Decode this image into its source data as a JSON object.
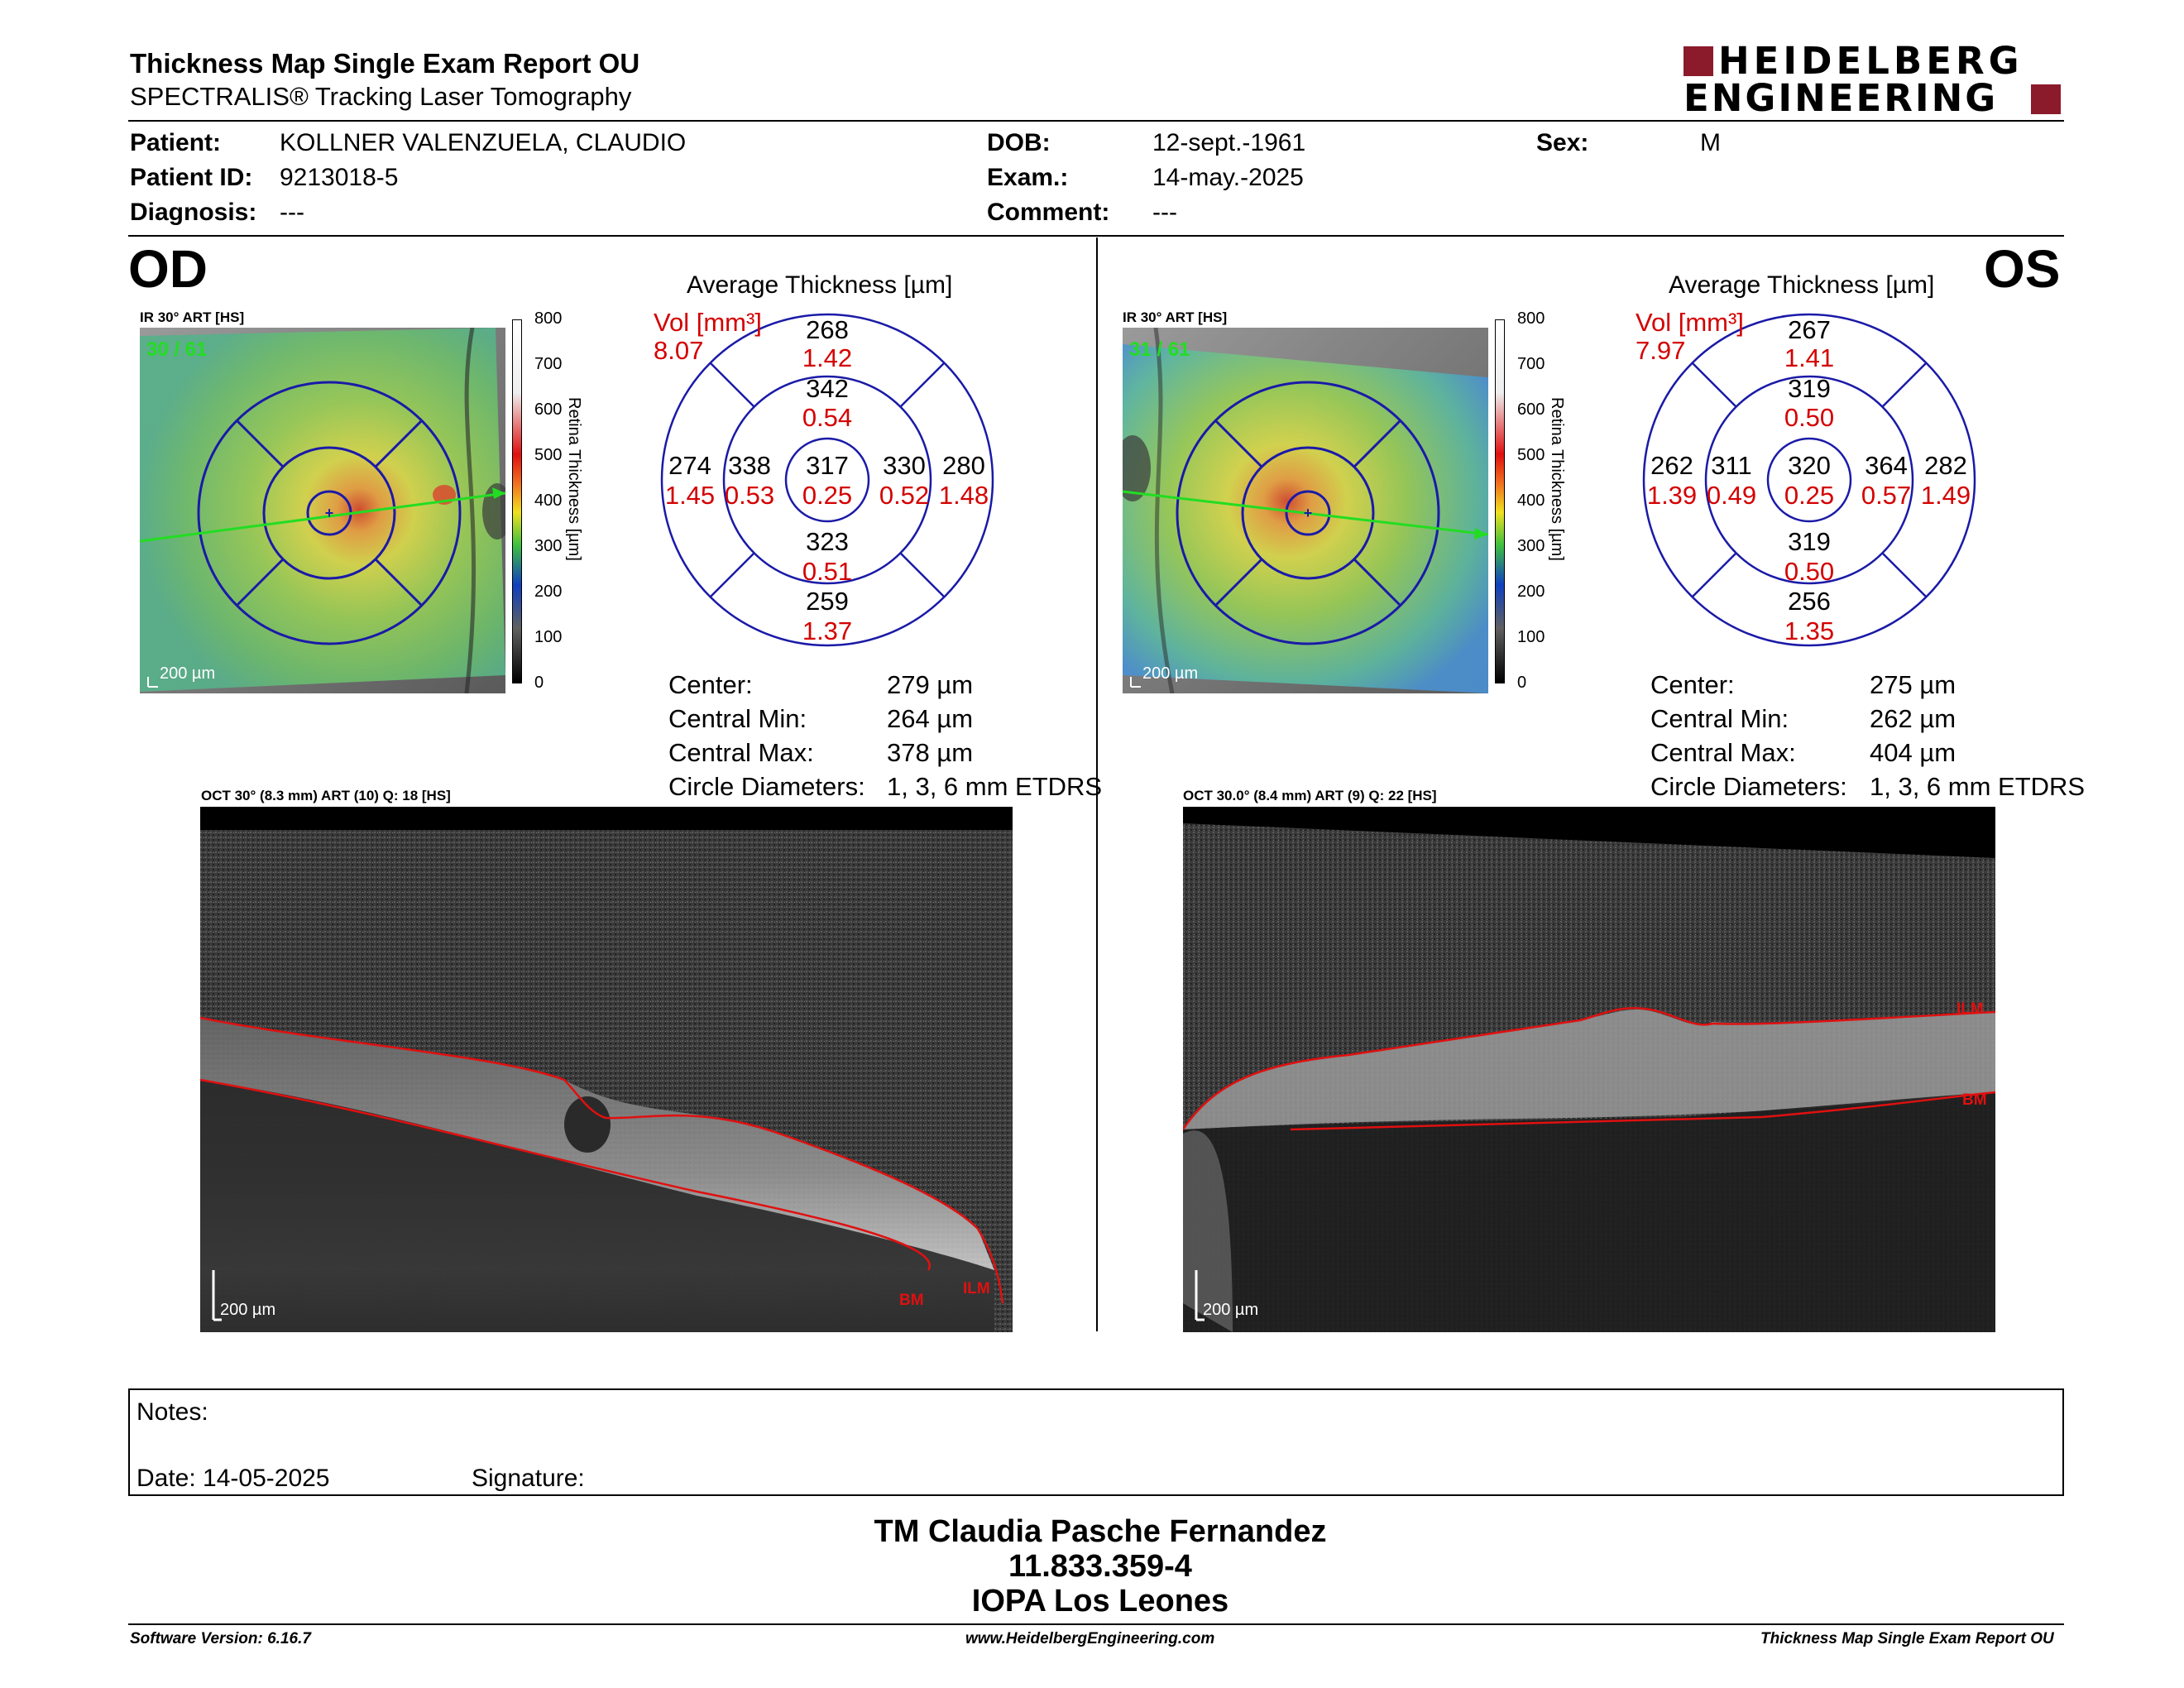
{
  "header": {
    "title": "Thickness Map Single Exam Report OU",
    "subtitle": "SPECTRALIS® Tracking Laser Tomography",
    "logo_line1": "HEIDELBERG",
    "logo_line2": "ENGINEERING",
    "brand_color": "#8b1a2b"
  },
  "patient": {
    "patient_label": "Patient:",
    "patient_value": "KOLLNER VALENZUELA, CLAUDIO",
    "id_label": "Patient ID:",
    "id_value": "9213018-5",
    "diagnosis_label": "Diagnosis:",
    "diagnosis_value": "---",
    "dob_label": "DOB:",
    "dob_value": "12-sept.-1961",
    "exam_label": "Exam.:",
    "exam_value": "14-may.-2025",
    "comment_label": "Comment:",
    "comment_value": "---",
    "sex_label": "Sex:",
    "sex_value": "M"
  },
  "od": {
    "eye": "OD",
    "ir_label": "IR 30° ART [HS]",
    "ir_counter": "30 / 61",
    "scale_label": "200 µm",
    "colorbar_ticks": [
      "800",
      "700",
      "600",
      "500",
      "400",
      "300",
      "200",
      "100",
      "0"
    ],
    "colorbar_title": "Retina Thickness [µm]",
    "avg_title": "Average Thickness [µm]",
    "vol_label": "Vol [mm³]",
    "vol_total": "8.07",
    "grid": {
      "outer_top": "268",
      "outer_top_vol": "1.42",
      "inner_top": "342",
      "inner_top_vol": "0.54",
      "outer_left": "274",
      "outer_left_vol": "1.45",
      "inner_left": "338",
      "inner_left_vol": "0.53",
      "center": "317",
      "center_vol": "0.25",
      "inner_right": "330",
      "inner_right_vol": "0.52",
      "outer_right": "280",
      "outer_right_vol": "1.48",
      "inner_bottom": "323",
      "inner_bottom_vol": "0.51",
      "outer_bottom": "259",
      "outer_bottom_vol": "1.37"
    },
    "stats": {
      "center_label": "Center:",
      "center_value": "279 µm",
      "cmin_label": "Central Min:",
      "cmin_value": "264 µm",
      "cmax_label": "Central Max:",
      "cmax_value": "378 µm",
      "circ_label": "Circle Diameters:",
      "circ_value": "1, 3, 6 mm ETDRS"
    },
    "oct_label": "OCT 30° (8.3 mm) ART (10) Q: 18 [HS]",
    "oct_scale": "200 µm",
    "ilm": "ILM",
    "bm": "BM"
  },
  "os": {
    "eye": "OS",
    "ir_label": "IR 30° ART [HS]",
    "ir_counter": "31 / 61",
    "scale_label": "200 µm",
    "colorbar_ticks": [
      "800",
      "700",
      "600",
      "500",
      "400",
      "300",
      "200",
      "100",
      "0"
    ],
    "colorbar_title": "Retina Thickness [µm]",
    "avg_title": "Average Thickness [µm]",
    "vol_label": "Vol [mm³]",
    "vol_total": "7.97",
    "grid": {
      "outer_top": "267",
      "outer_top_vol": "1.41",
      "inner_top": "319",
      "inner_top_vol": "0.50",
      "outer_left": "262",
      "outer_left_vol": "1.39",
      "inner_left": "311",
      "inner_left_vol": "0.49",
      "center": "320",
      "center_vol": "0.25",
      "inner_right": "364",
      "inner_right_vol": "0.57",
      "outer_right": "282",
      "outer_right_vol": "1.49",
      "inner_bottom": "319",
      "inner_bottom_vol": "0.50",
      "outer_bottom": "256",
      "outer_bottom_vol": "1.35"
    },
    "stats": {
      "center_label": "Center:",
      "center_value": "275 µm",
      "cmin_label": "Central Min:",
      "cmin_value": "262 µm",
      "cmax_label": "Central Max:",
      "cmax_value": "404 µm",
      "circ_label": "Circle Diameters:",
      "circ_value": "1, 3, 6 mm ETDRS"
    },
    "oct_label": "OCT 30.0° (8.4 mm) ART (9) Q: 22 [HS]",
    "oct_scale": "200 µm",
    "ilm": "ILM",
    "bm": "BM"
  },
  "notes": {
    "notes_label": "Notes:",
    "date_label": "Date: 14-05-2025",
    "signature_label": "Signature:"
  },
  "signature": {
    "name": "TM Claudia Pasche Fernandez",
    "rut": "11.833.359-4",
    "institution": "IOPA Los Leones"
  },
  "footer": {
    "software": "Software Version: 6.16.7",
    "website": "www.HeidelbergEngineering.com",
    "report": "Thickness Map Single Exam Report OU"
  },
  "colors": {
    "grid_blue": "#1a1aa8",
    "volume_red": "#d40000",
    "scan_green": "#22dd22",
    "seg_red": "#e01010"
  }
}
